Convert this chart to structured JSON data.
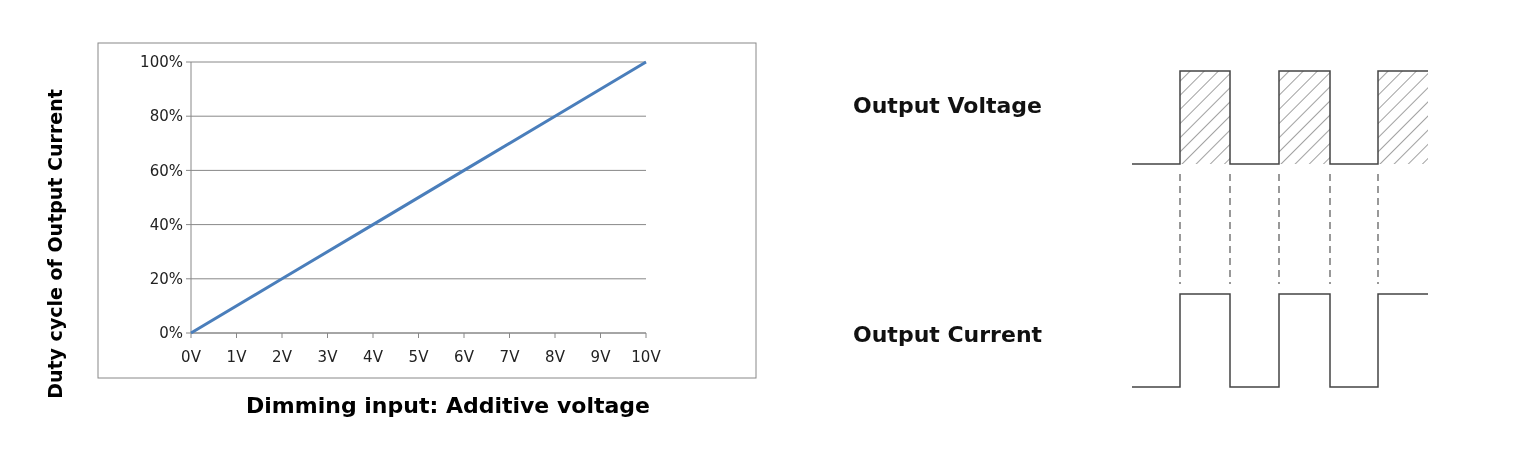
{
  "chart_data": [
    {
      "type": "line",
      "xlabel": "Dimming input: Additive voltage",
      "ylabel": "Duty cycle of Output Current",
      "x": [
        0,
        2,
        4,
        6,
        8,
        10
      ],
      "series": [
        {
          "color": "#4a7ebb",
          "values": [
            0,
            20,
            40,
            60,
            80,
            100
          ]
        }
      ],
      "xlim": [
        0,
        10
      ],
      "xticks": [
        {
          "value": 0,
          "label": "0V"
        },
        {
          "value": 1,
          "label": "1V"
        },
        {
          "value": 2,
          "label": "2V"
        },
        {
          "value": 3,
          "label": "3V"
        },
        {
          "value": 4,
          "label": "4V"
        },
        {
          "value": 5,
          "label": "5V"
        },
        {
          "value": 6,
          "label": "6V"
        },
        {
          "value": 7,
          "label": "7V"
        },
        {
          "value": 8,
          "label": "8V"
        },
        {
          "value": 9,
          "label": "9V"
        },
        {
          "value": 10,
          "label": "10V"
        }
      ],
      "ylim": [
        0,
        100
      ],
      "yticks": [
        {
          "value": 0,
          "label": "0%"
        },
        {
          "value": 20,
          "label": "20%"
        },
        {
          "value": 40,
          "label": "40%"
        },
        {
          "value": 60,
          "label": "60%"
        },
        {
          "value": 80,
          "label": "80%"
        },
        {
          "value": 100,
          "label": "100%"
        }
      ],
      "grid": "y",
      "marker": "none",
      "line_style": "solid"
    },
    {
      "type": "other",
      "annotations": [
        "Output Voltage",
        "Output Current"
      ]
    }
  ]
}
